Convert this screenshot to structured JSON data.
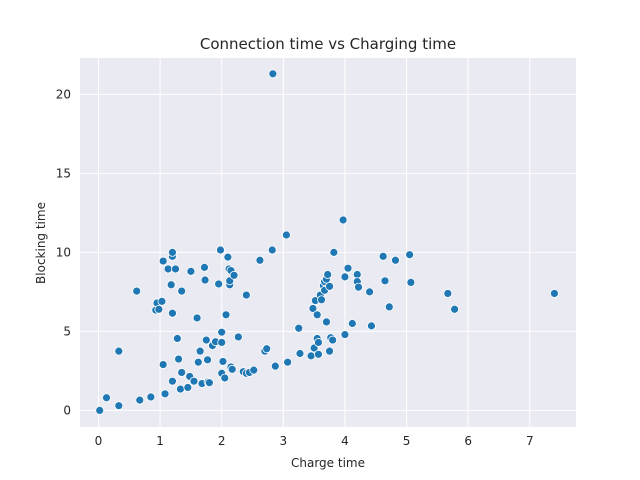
{
  "chart_data": {
    "type": "scatter",
    "title": "Connection time vs Charging time",
    "xlabel": "Charge time",
    "ylabel": "Blocking time",
    "xlim": [
      -0.3,
      7.75
    ],
    "ylim": [
      -1.05,
      22.3
    ],
    "xticks": [
      0,
      1,
      2,
      3,
      4,
      5,
      6,
      7
    ],
    "yticks": [
      0,
      5,
      10,
      15,
      20
    ],
    "grid": true,
    "color": "#1f77b4",
    "background": "#eaeaf2",
    "points": [
      [
        0.02,
        0.0
      ],
      [
        0.13,
        0.8
      ],
      [
        0.33,
        0.3
      ],
      [
        0.33,
        3.75
      ],
      [
        0.62,
        7.55
      ],
      [
        0.67,
        0.65
      ],
      [
        0.85,
        0.85
      ],
      [
        0.93,
        6.35
      ],
      [
        0.95,
        6.8
      ],
      [
        0.98,
        6.4
      ],
      [
        1.03,
        6.9
      ],
      [
        1.05,
        9.45
      ],
      [
        1.05,
        2.9
      ],
      [
        1.08,
        1.05
      ],
      [
        1.13,
        8.95
      ],
      [
        1.18,
        7.95
      ],
      [
        1.2,
        9.75
      ],
      [
        1.2,
        10.0
      ],
      [
        1.2,
        6.15
      ],
      [
        1.2,
        1.85
      ],
      [
        1.25,
        8.95
      ],
      [
        1.28,
        4.55
      ],
      [
        1.3,
        3.25
      ],
      [
        1.33,
        1.35
      ],
      [
        1.35,
        7.55
      ],
      [
        1.35,
        2.4
      ],
      [
        1.45,
        1.45
      ],
      [
        1.48,
        2.15
      ],
      [
        1.5,
        8.8
      ],
      [
        1.55,
        1.85
      ],
      [
        1.6,
        5.85
      ],
      [
        1.62,
        3.05
      ],
      [
        1.65,
        3.75
      ],
      [
        1.68,
        1.7
      ],
      [
        1.72,
        9.05
      ],
      [
        1.73,
        8.25
      ],
      [
        1.75,
        4.45
      ],
      [
        1.77,
        3.2
      ],
      [
        1.78,
        1.8
      ],
      [
        1.8,
        1.75
      ],
      [
        1.85,
        4.1
      ],
      [
        1.9,
        4.35
      ],
      [
        1.95,
        8.0
      ],
      [
        1.98,
        10.15
      ],
      [
        2.0,
        4.95
      ],
      [
        2.0,
        4.3
      ],
      [
        2.0,
        2.35
      ],
      [
        2.02,
        3.1
      ],
      [
        2.05,
        2.05
      ],
      [
        2.07,
        6.05
      ],
      [
        2.1,
        9.7
      ],
      [
        2.12,
        8.95
      ],
      [
        2.13,
        7.95
      ],
      [
        2.13,
        8.2
      ],
      [
        2.15,
        8.85
      ],
      [
        2.15,
        2.75
      ],
      [
        2.17,
        2.6
      ],
      [
        2.2,
        8.55
      ],
      [
        2.27,
        4.65
      ],
      [
        2.35,
        2.45
      ],
      [
        2.4,
        2.35
      ],
      [
        2.4,
        7.3
      ],
      [
        2.45,
        2.4
      ],
      [
        2.52,
        2.55
      ],
      [
        2.62,
        9.5
      ],
      [
        2.7,
        3.75
      ],
      [
        2.73,
        3.9
      ],
      [
        2.82,
        10.15
      ],
      [
        2.83,
        21.3
      ],
      [
        2.87,
        2.8
      ],
      [
        3.05,
        11.1
      ],
      [
        3.07,
        3.05
      ],
      [
        3.25,
        5.2
      ],
      [
        3.27,
        3.6
      ],
      [
        3.45,
        3.45
      ],
      [
        3.48,
        6.45
      ],
      [
        3.5,
        3.95
      ],
      [
        3.52,
        6.95
      ],
      [
        3.55,
        4.55
      ],
      [
        3.55,
        6.05
      ],
      [
        3.57,
        4.3
      ],
      [
        3.57,
        3.55
      ],
      [
        3.6,
        7.3
      ],
      [
        3.62,
        7.0
      ],
      [
        3.65,
        7.9
      ],
      [
        3.67,
        7.6
      ],
      [
        3.67,
        8.15
      ],
      [
        3.7,
        5.6
      ],
      [
        3.7,
        8.3
      ],
      [
        3.72,
        8.6
      ],
      [
        3.75,
        3.75
      ],
      [
        3.75,
        7.85
      ],
      [
        3.77,
        4.6
      ],
      [
        3.8,
        4.45
      ],
      [
        3.82,
        10.0
      ],
      [
        3.97,
        12.05
      ],
      [
        4.0,
        4.8
      ],
      [
        4.0,
        8.45
      ],
      [
        4.05,
        9.0
      ],
      [
        4.12,
        5.5
      ],
      [
        4.2,
        8.6
      ],
      [
        4.2,
        8.15
      ],
      [
        4.22,
        7.8
      ],
      [
        4.4,
        7.5
      ],
      [
        4.43,
        5.35
      ],
      [
        4.62,
        9.75
      ],
      [
        4.65,
        8.2
      ],
      [
        4.72,
        6.55
      ],
      [
        4.82,
        9.5
      ],
      [
        5.05,
        9.85
      ],
      [
        5.07,
        8.1
      ],
      [
        5.67,
        7.4
      ],
      [
        5.78,
        6.4
      ],
      [
        7.4,
        7.4
      ]
    ]
  }
}
